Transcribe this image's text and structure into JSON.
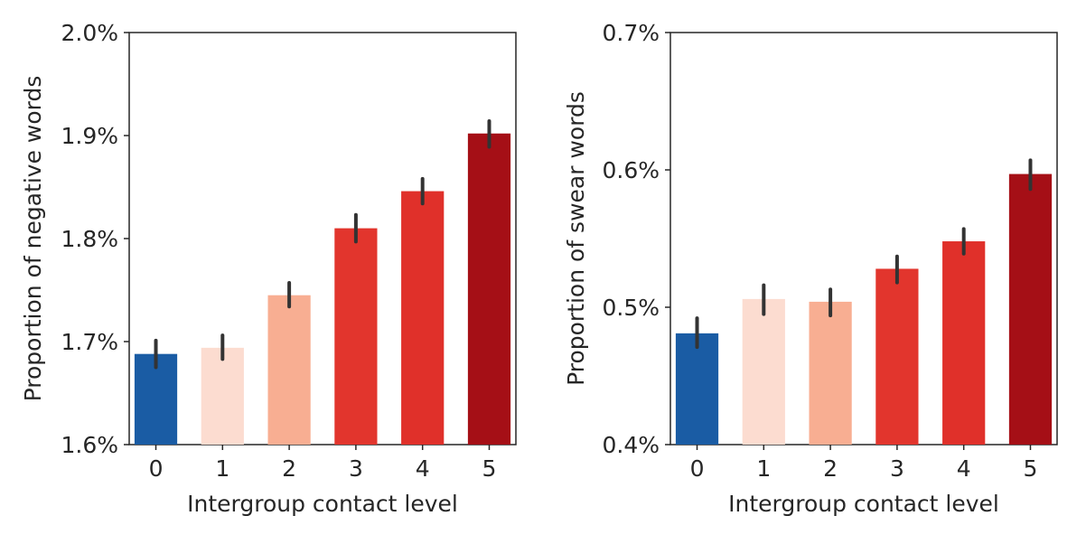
{
  "chart_data": [
    {
      "type": "bar",
      "categories": [
        "0",
        "1",
        "2",
        "3",
        "4",
        "5"
      ],
      "values": [
        1.688,
        1.694,
        1.745,
        1.81,
        1.846,
        1.902
      ],
      "error_low": [
        1.675,
        1.683,
        1.734,
        1.797,
        1.834,
        1.889
      ],
      "error_high": [
        1.701,
        1.706,
        1.757,
        1.823,
        1.858,
        1.914
      ],
      "colors": [
        "#1a5ca4",
        "#fcdcd0",
        "#f8ae92",
        "#e2352d",
        "#e0302a",
        "#a50f16"
      ],
      "xlabel": "Intergroup contact level",
      "ylabel": "Proportion of negative words",
      "ylim": [
        1.6,
        2.0
      ],
      "yticks": [
        1.6,
        1.7,
        1.8,
        1.9,
        2.0
      ],
      "ytick_labels": [
        "1.6%",
        "1.7%",
        "1.8%",
        "1.9%",
        "2.0%"
      ],
      "grid": false,
      "legend": "none"
    },
    {
      "type": "bar",
      "categories": [
        "0",
        "1",
        "2",
        "3",
        "4",
        "5"
      ],
      "values": [
        0.481,
        0.506,
        0.504,
        0.528,
        0.548,
        0.597
      ],
      "error_low": [
        0.471,
        0.495,
        0.494,
        0.518,
        0.539,
        0.586
      ],
      "error_high": [
        0.492,
        0.516,
        0.513,
        0.537,
        0.557,
        0.607
      ],
      "colors": [
        "#1a5ca4",
        "#fcdcd0",
        "#f8ae92",
        "#e2352d",
        "#e0302a",
        "#a50f16"
      ],
      "xlabel": "Intergroup contact level",
      "ylabel": "Proportion of swear words",
      "ylim": [
        0.4,
        0.7
      ],
      "yticks": [
        0.4,
        0.5,
        0.6,
        0.7
      ],
      "ytick_labels": [
        "0.4%",
        "0.5%",
        "0.6%",
        "0.7%"
      ],
      "grid": false,
      "legend": "none"
    }
  ]
}
